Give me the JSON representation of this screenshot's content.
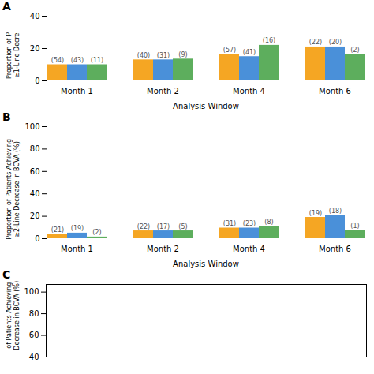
{
  "chart_data": [
    {
      "type": "bar",
      "title": "A",
      "categories": [
        "Month 1",
        "Month 2",
        "Month 4",
        "Month 6"
      ],
      "series": [
        {
          "color": "#F5A623",
          "values": [
            10.0,
            13.0,
            16.5,
            21.0
          ],
          "annotations": [
            "(54)",
            "(40)",
            "(57)",
            "(22)"
          ]
        },
        {
          "color": "#4A90D9",
          "values": [
            10.0,
            13.0,
            15.0,
            21.0
          ],
          "annotations": [
            "(43)",
            "(31)",
            "(41)",
            "(20)"
          ]
        },
        {
          "color": "#5DAE5D",
          "values": [
            10.0,
            13.5,
            22.0,
            16.5
          ],
          "annotations": [
            "(11)",
            "(9)",
            "(16)",
            "(2)"
          ]
        }
      ],
      "xlabel": "Analysis Window",
      "ylabel": "Proportion of P\n≥1-Line Decre",
      "ylim": [
        0,
        40
      ],
      "yticks": [
        0,
        20,
        40
      ]
    },
    {
      "type": "bar",
      "title": "B",
      "categories": [
        "Month 1",
        "Month 2",
        "Month 4",
        "Month 6"
      ],
      "series": [
        {
          "color": "#F5A623",
          "values": [
            4.0,
            7.0,
            9.5,
            19.0
          ],
          "annotations": [
            "(21)",
            "(22)",
            "(31)",
            "(19)"
          ]
        },
        {
          "color": "#4A90D9",
          "values": [
            5.0,
            7.0,
            9.5,
            20.5
          ],
          "annotations": [
            "(19)",
            "(17)",
            "(23)",
            "(18)"
          ]
        },
        {
          "color": "#5DAE5D",
          "values": [
            1.5,
            7.0,
            11.0,
            7.5
          ],
          "annotations": [
            "(2)",
            "(5)",
            "(8)",
            "(1)"
          ]
        }
      ],
      "xlabel": "Analysis Window",
      "ylabel": "Proportion of Patients Achieving\n≥2-Line Decrease in BCVA (%)",
      "ylim": [
        0,
        100
      ],
      "yticks": [
        0,
        20,
        40,
        60,
        80,
        100
      ]
    },
    {
      "type": "bar",
      "title": "C",
      "ylabel": "of Patients Achieving\nDecrease in BCVA (%)",
      "ylim": [
        40,
        107
      ],
      "yticks": [
        40,
        60,
        80,
        100
      ],
      "tick_labels": "y"
    }
  ]
}
